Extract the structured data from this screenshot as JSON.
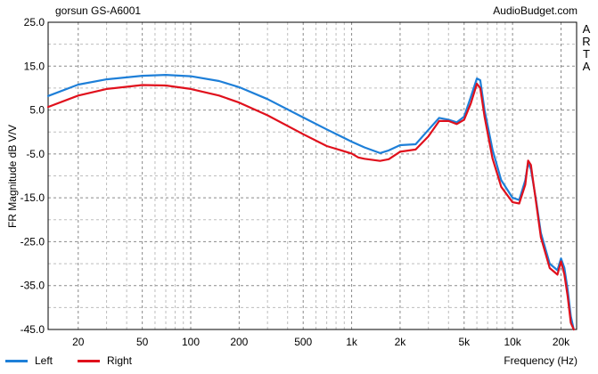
{
  "header": {
    "title_left": "gorsun GS-A6001",
    "title_right": "AudioBudget.com"
  },
  "side_text": "ARTA",
  "legend": {
    "left": {
      "label": "Left",
      "color": "#1e7fd8"
    },
    "right": {
      "label": "Right",
      "color": "#e0101c"
    }
  },
  "chart_data": {
    "type": "line",
    "title": "gorsun GS-A6001",
    "xlabel": "Frequency (Hz)",
    "ylabel": "FR Magnitude dB V/V",
    "xscale": "log",
    "xlim": [
      13,
      25000
    ],
    "ylim": [
      -45,
      25
    ],
    "grid": true,
    "legend_position": "bottom-left",
    "x_ticks": [
      20,
      50,
      100,
      200,
      500,
      1000,
      2000,
      5000,
      10000,
      20000
    ],
    "x_tick_labels": [
      "20",
      "50",
      "100",
      "200",
      "500",
      "1k",
      "2k",
      "5k",
      "10k",
      "20k"
    ],
    "y_ticks": [
      25,
      15,
      5,
      -5,
      -15,
      -25,
      -35,
      -45
    ],
    "y_tick_labels": [
      "25.0",
      "15.0",
      "5.0",
      "-5.0",
      "-15.0",
      "-25.0",
      "-35.0",
      "-45.0"
    ],
    "series": [
      {
        "name": "Left",
        "color": "#1e7fd8",
        "x": [
          13,
          20,
          30,
          50,
          70,
          100,
          150,
          200,
          300,
          500,
          700,
          1000,
          1200,
          1500,
          1700,
          2000,
          2500,
          3000,
          3500,
          4000,
          4500,
          5000,
          5500,
          6000,
          6300,
          6700,
          7500,
          8500,
          10000,
          11000,
          12000,
          12500,
          13000,
          14000,
          15000,
          17000,
          19000,
          20000,
          21000,
          22000,
          23000,
          24000
        ],
        "y": [
          8.2,
          10.8,
          12.0,
          12.8,
          13.0,
          12.7,
          11.6,
          10.2,
          7.5,
          3.3,
          0.6,
          -2.2,
          -3.5,
          -4.8,
          -4.2,
          -3.0,
          -2.8,
          0.5,
          3.2,
          2.8,
          2.2,
          3.5,
          8.0,
          12.2,
          11.8,
          5.0,
          -4.0,
          -11.0,
          -15.0,
          -15.5,
          -11.0,
          -7.0,
          -8.5,
          -15.5,
          -23.0,
          -30.0,
          -31.5,
          -28.8,
          -31.0,
          -36.0,
          -42.0,
          -45.0
        ]
      },
      {
        "name": "Right",
        "color": "#e0101c",
        "x": [
          13,
          20,
          30,
          50,
          70,
          100,
          150,
          200,
          300,
          500,
          700,
          1000,
          1100,
          1200,
          1500,
          1700,
          2000,
          2500,
          3000,
          3500,
          4000,
          4500,
          5000,
          5500,
          6000,
          6300,
          6700,
          7500,
          8500,
          10000,
          11000,
          12000,
          12500,
          13000,
          14000,
          15000,
          17000,
          19000,
          20000,
          21000,
          22000,
          23000,
          24000
        ],
        "y": [
          5.7,
          8.3,
          9.8,
          10.7,
          10.6,
          9.8,
          8.3,
          6.7,
          3.8,
          -0.5,
          -3.2,
          -4.9,
          -5.8,
          -6.1,
          -6.6,
          -6.2,
          -4.5,
          -4.0,
          -1.0,
          2.5,
          2.5,
          1.8,
          2.8,
          6.5,
          11.0,
          10.0,
          3.5,
          -6.0,
          -12.5,
          -16.0,
          -16.3,
          -12.0,
          -6.5,
          -7.5,
          -16.0,
          -24.0,
          -31.0,
          -32.5,
          -29.5,
          -32.5,
          -37.5,
          -43.5,
          -45.0
        ]
      }
    ]
  }
}
